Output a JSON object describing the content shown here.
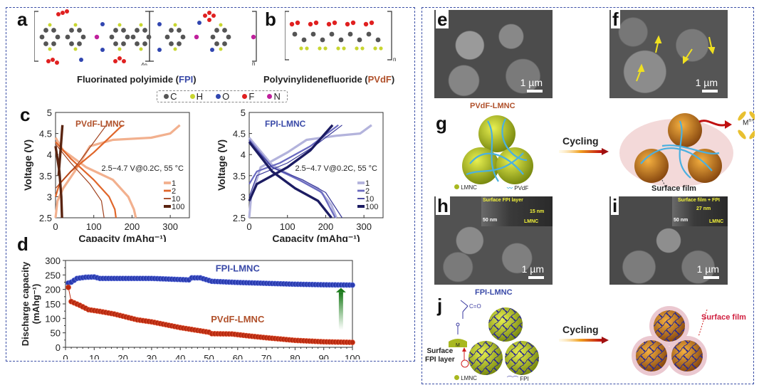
{
  "panels": {
    "a": {
      "label": "a",
      "title_prefix": "Fluorinated polyimide (",
      "title_abbr": "FPI",
      "title_suffix": ")",
      "subscript_1": "4n",
      "subscript_2": "n"
    },
    "b": {
      "label": "b",
      "title_prefix": "Polyvinylidenefluoride (",
      "title_abbr": "PVdF",
      "title_suffix": ")",
      "subscript": "n"
    },
    "atom_legend": [
      {
        "symbol": "C",
        "color": "#555555"
      },
      {
        "symbol": "H",
        "color": "#c8d630"
      },
      {
        "symbol": "O",
        "color": "#3146b0"
      },
      {
        "symbol": "F",
        "color": "#e02020"
      },
      {
        "symbol": "N",
        "color": "#c0209c"
      }
    ],
    "c": {
      "label": "c"
    },
    "d": {
      "label": "d"
    },
    "e": {
      "label": "e",
      "scale": "1 µm"
    },
    "f": {
      "label": "f",
      "scale": "1 µm"
    },
    "g": {
      "label": "g",
      "title": "PVdF-LMNC",
      "arrow_label": "Cycling",
      "ion_label": "M",
      "ion_sup": "n+",
      "film_label": "Surface film",
      "legend_lmnc": "LMNC",
      "legend_binder": "PVdF"
    },
    "h": {
      "label": "h",
      "scale": "1 µm",
      "inset_layer": "Surface FPI layer",
      "inset_thickness": "15 nm",
      "inset_scale": "50 nm",
      "inset_core": "LMNC"
    },
    "i": {
      "label": "i",
      "scale": "1 µm",
      "inset_layer": "Surface film + FPI",
      "inset_thickness": "27 nm",
      "inset_scale": "50 nm",
      "inset_core": "LMNC"
    },
    "j": {
      "label": "j",
      "title": "FPI-LMNC",
      "arrow_label": "Cycling",
      "metal_label": "M",
      "carbonyl_label": "C=O",
      "layer_label_1": "Surface",
      "layer_label_2": "FPI layer",
      "film_label": "Surface film",
      "legend_lmnc": "LMNC",
      "legend_binder": "FPI"
    }
  },
  "colors": {
    "fpi_blue": "#3a4aa8",
    "pvdf_brown": "#b0502a",
    "fpi_series": [
      "#b3b3dc",
      "#6a6ac0",
      "#3a3a9a",
      "#1c1c62"
    ],
    "pvdf_series": [
      "#f2b08e",
      "#e0662a",
      "#a0401c",
      "#5a2410"
    ]
  },
  "chart_data": [
    {
      "id": "c-left",
      "type": "line",
      "title": "PVdF-LMNC",
      "annotation": "2.5−4.7 V@0.2C, 55 °C",
      "xlabel": "Capacity (mAhg⁻¹)",
      "ylabel": "Voltage (V)",
      "xlim": [
        0,
        350
      ],
      "ylim": [
        2.5,
        5
      ],
      "xticks": [
        "0",
        "100",
        "200",
        "300"
      ],
      "yticks": [
        "2.5",
        "3",
        "3.5",
        "4",
        "4.5",
        "5"
      ],
      "legend": [
        "1",
        "2",
        "10",
        "100"
      ],
      "series": [
        {
          "name": "1",
          "charge": [
            [
              0,
              2.5
            ],
            [
              5,
              2.9
            ],
            [
              20,
              3.2
            ],
            [
              50,
              3.6
            ],
            [
              90,
              4.2
            ],
            [
              150,
              4.35
            ],
            [
              250,
              4.4
            ],
            [
              300,
              4.5
            ],
            [
              325,
              4.7
            ]
          ],
          "discharge": [
            [
              0,
              4.4
            ],
            [
              20,
              4.1
            ],
            [
              80,
              3.7
            ],
            [
              150,
              3.4
            ],
            [
              190,
              3.0
            ],
            [
              205,
              2.7
            ],
            [
              210,
              2.5
            ]
          ]
        },
        {
          "name": "2",
          "charge": [
            [
              0,
              3.0
            ],
            [
              10,
              3.3
            ],
            [
              40,
              3.6
            ],
            [
              100,
              4.05
            ],
            [
              175,
              4.7
            ]
          ],
          "discharge": [
            [
              0,
              4.3
            ],
            [
              40,
              3.9
            ],
            [
              100,
              3.4
            ],
            [
              140,
              3.0
            ],
            [
              155,
              2.7
            ],
            [
              158,
              2.5
            ]
          ]
        },
        {
          "name": "10",
          "charge": [
            [
              0,
              3.2
            ],
            [
              20,
              3.4
            ],
            [
              60,
              3.8
            ],
            [
              133,
              4.7
            ]
          ],
          "discharge": [
            [
              0,
              4.25
            ],
            [
              40,
              3.8
            ],
            [
              90,
              3.3
            ],
            [
              120,
              2.9
            ],
            [
              127,
              2.5
            ]
          ]
        },
        {
          "name": "100",
          "charge": [
            [
              8,
              3.5
            ],
            [
              14,
              4.2
            ],
            [
              18,
              4.7
            ]
          ],
          "discharge": [
            [
              0,
              4.2
            ],
            [
              10,
              3.6
            ],
            [
              15,
              3.0
            ],
            [
              17,
              2.5
            ]
          ]
        }
      ]
    },
    {
      "id": "c-right",
      "type": "line",
      "title": "FPI-LMNC",
      "annotation": "2.5−4.7 V@0.2C, 55 °C",
      "xlabel": "Capacity (mAhg⁻¹)",
      "ylabel": "Voltage (V)",
      "xlim": [
        0,
        350
      ],
      "ylim": [
        2.5,
        5
      ],
      "xticks": [
        "0",
        "100",
        "200",
        "300"
      ],
      "yticks": [
        "2.5",
        "3",
        "3.5",
        "4",
        "4.5",
        "5"
      ],
      "legend": [
        "1",
        "2",
        "10",
        "100"
      ],
      "series": [
        {
          "name": "1",
          "charge": [
            [
              0,
              2.5
            ],
            [
              5,
              3.0
            ],
            [
              30,
              3.7
            ],
            [
              100,
              4.05
            ],
            [
              150,
              4.35
            ],
            [
              230,
              4.45
            ],
            [
              290,
              4.5
            ],
            [
              320,
              4.7
            ]
          ],
          "discharge": [
            [
              0,
              4.4
            ],
            [
              60,
              3.75
            ],
            [
              120,
              3.45
            ],
            [
              180,
              3.2
            ],
            [
              215,
              2.8
            ],
            [
              228,
              2.5
            ]
          ]
        },
        {
          "name": "2",
          "charge": [
            [
              0,
              3.3
            ],
            [
              20,
              3.6
            ],
            [
              80,
              3.8
            ],
            [
              160,
              4.2
            ],
            [
              233,
              4.7
            ]
          ],
          "discharge": [
            [
              0,
              4.35
            ],
            [
              60,
              3.7
            ],
            [
              130,
              3.4
            ],
            [
              190,
              3.1
            ],
            [
              225,
              2.5
            ]
          ]
        },
        {
          "name": "10",
          "charge": [
            [
              0,
              3.0
            ],
            [
              20,
              3.5
            ],
            [
              100,
              3.8
            ],
            [
              170,
              4.2
            ],
            [
              243,
              4.7
            ]
          ],
          "discharge": [
            [
              0,
              4.3
            ],
            [
              60,
              3.7
            ],
            [
              140,
              3.4
            ],
            [
              200,
              3.1
            ],
            [
              243,
              2.5
            ]
          ]
        },
        {
          "name": "100",
          "charge": [
            [
              0,
              2.9
            ],
            [
              20,
              3.3
            ],
            [
              100,
              3.7
            ],
            [
              160,
              4.1
            ],
            [
              218,
              4.7
            ]
          ],
          "discharge": [
            [
              0,
              4.3
            ],
            [
              60,
              3.6
            ],
            [
              120,
              3.2
            ],
            [
              180,
              2.9
            ],
            [
              215,
              2.5
            ]
          ]
        }
      ]
    },
    {
      "id": "d",
      "type": "scatter",
      "xlabel": "",
      "ylabel": "Discharge capacity (mAhg⁻¹)",
      "xlim": [
        0,
        100
      ],
      "ylim": [
        0,
        300
      ],
      "xticks": [
        "0",
        "10",
        "20",
        "30",
        "40",
        "50",
        "60",
        "70",
        "80",
        "90",
        "100"
      ],
      "yticks": [
        "0",
        "50",
        "100",
        "150",
        "200",
        "250",
        "300"
      ],
      "series": [
        {
          "name": "FPI-LMNC",
          "anchors": [
            [
              1,
              222
            ],
            [
              2,
              225
            ],
            [
              4,
              238
            ],
            [
              7,
              242
            ],
            [
              10,
              243
            ],
            [
              12,
              238
            ],
            [
              20,
              238
            ],
            [
              30,
              238
            ],
            [
              43,
              233
            ],
            [
              44,
              240
            ],
            [
              47,
              240
            ],
            [
              51,
              228
            ],
            [
              60,
              224
            ],
            [
              70,
              221
            ],
            [
              80,
              218
            ],
            [
              90,
              216
            ],
            [
              100,
              215
            ]
          ]
        },
        {
          "name": "PVdF-LMNC",
          "anchors": [
            [
              1,
              207
            ],
            [
              2,
              158
            ],
            [
              5,
              145
            ],
            [
              8,
              130
            ],
            [
              12,
              124
            ],
            [
              17,
              115
            ],
            [
              25,
              95
            ],
            [
              30,
              88
            ],
            [
              40,
              68
            ],
            [
              50,
              52
            ],
            [
              51,
              47
            ],
            [
              58,
              46
            ],
            [
              65,
              38
            ],
            [
              70,
              33
            ],
            [
              80,
              24
            ],
            [
              90,
              19
            ],
            [
              100,
              17
            ]
          ]
        }
      ]
    }
  ]
}
